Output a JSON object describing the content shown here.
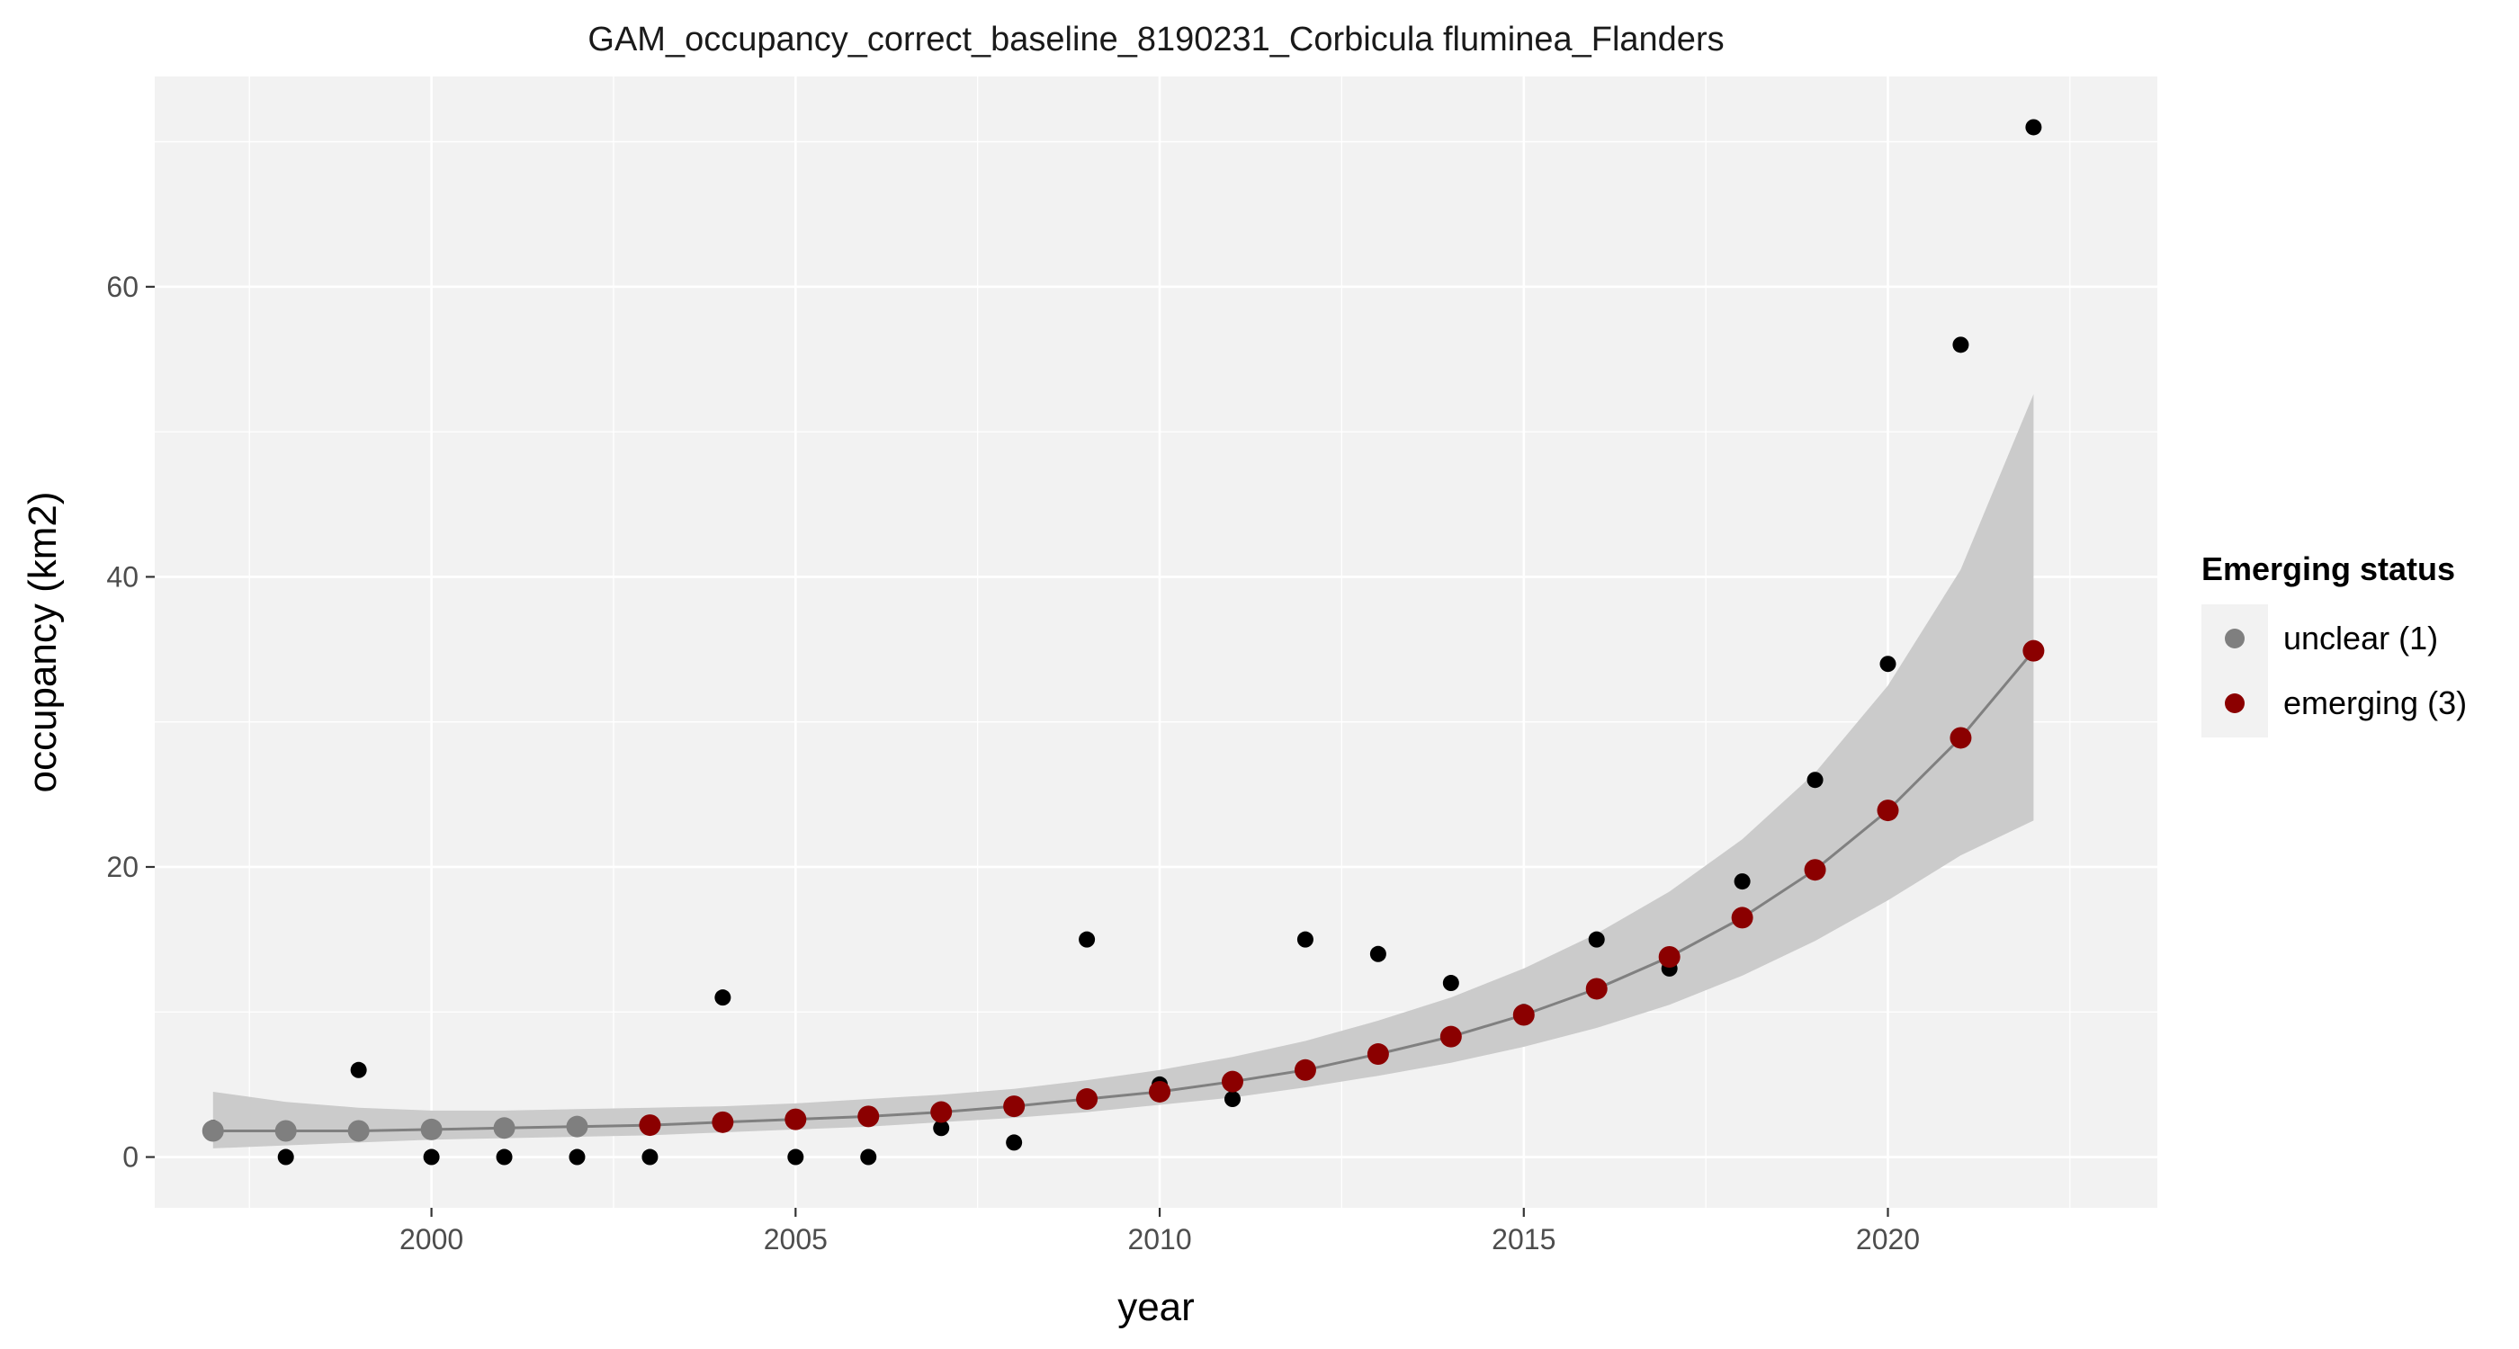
{
  "chart_data": {
    "type": "line",
    "title": "GAM_occupancy_correct_baseline_8190231_Corbicula fluminea_Flanders",
    "xlabel": "year",
    "ylabel": "occupancy (km2)",
    "xlim": [
      1996.2,
      2023.7
    ],
    "ylim": [
      -3.5,
      74.5
    ],
    "x_ticks": [
      2000,
      2005,
      2010,
      2015,
      2020
    ],
    "x_tick_labels": [
      "2000",
      "2005",
      "2010",
      "2015",
      "2020"
    ],
    "x_minor_ticks": [
      1997.5,
      2002.5,
      2007.5,
      2012.5,
      2017.5,
      2022.5
    ],
    "y_ticks": [
      0,
      20,
      40,
      60
    ],
    "y_tick_labels": [
      "0",
      "20",
      "40",
      "60"
    ],
    "y_minor_ticks": [
      10,
      30,
      50,
      70
    ],
    "grid": true,
    "legend": {
      "title": "Emerging status",
      "position": "right",
      "entries": [
        {
          "label": "unclear (1)",
          "color": "#7f7f7f"
        },
        {
          "label": "emerging (3)",
          "color": "#8b0000"
        }
      ]
    },
    "colors": {
      "panel_background": "#f2f2f2",
      "grid": "#ffffff",
      "ribbon": "#c8c8c8",
      "fit_line": "#808080",
      "observed": "#000000",
      "unclear": "#7f7f7f",
      "emerging": "#8b0000"
    },
    "observed": {
      "x": [
        1997,
        1998,
        1999,
        2000,
        2001,
        2002,
        2003,
        2004,
        2005,
        2006,
        2007,
        2008,
        2009,
        2010,
        2011,
        2012,
        2013,
        2014,
        2015,
        2016,
        2017,
        2018,
        2019,
        2020,
        2021,
        2022
      ],
      "y": [
        2,
        0,
        6,
        0,
        0,
        0,
        0,
        11,
        0,
        0,
        2,
        1,
        15,
        5,
        4,
        15,
        14,
        12,
        10,
        15,
        13,
        19,
        26,
        34,
        56,
        71
      ]
    },
    "fit": {
      "x": [
        1997,
        1998,
        1999,
        2000,
        2001,
        2002,
        2003,
        2004,
        2005,
        2006,
        2007,
        2008,
        2009,
        2010,
        2011,
        2012,
        2013,
        2014,
        2015,
        2016,
        2017,
        2018,
        2019,
        2020,
        2021,
        2022
      ],
      "y": [
        1.8,
        1.8,
        1.8,
        1.9,
        2.0,
        2.1,
        2.2,
        2.4,
        2.6,
        2.8,
        3.1,
        3.5,
        4.0,
        4.5,
        5.2,
        6.0,
        7.1,
        8.3,
        9.8,
        11.6,
        13.8,
        16.5,
        19.8,
        23.9,
        28.9,
        34.9
      ],
      "status": [
        "unclear",
        "unclear",
        "unclear",
        "unclear",
        "unclear",
        "unclear",
        "emerging",
        "emerging",
        "emerging",
        "emerging",
        "emerging",
        "emerging",
        "emerging",
        "emerging",
        "emerging",
        "emerging",
        "emerging",
        "emerging",
        "emerging",
        "emerging",
        "emerging",
        "emerging",
        "emerging",
        "emerging",
        "emerging",
        "emerging"
      ],
      "lower": [
        0.6,
        0.8,
        1.0,
        1.2,
        1.3,
        1.4,
        1.5,
        1.7,
        1.9,
        2.1,
        2.4,
        2.7,
        3.1,
        3.6,
        4.1,
        4.8,
        5.6,
        6.5,
        7.6,
        8.9,
        10.5,
        12.5,
        14.9,
        17.7,
        20.8,
        23.2
      ],
      "upper": [
        4.5,
        3.8,
        3.4,
        3.2,
        3.2,
        3.3,
        3.4,
        3.5,
        3.7,
        4.0,
        4.3,
        4.7,
        5.3,
        6.0,
        6.9,
        8.0,
        9.4,
        11.0,
        13.0,
        15.4,
        18.3,
        21.9,
        26.5,
        32.5,
        40.5,
        52.6
      ]
    }
  }
}
